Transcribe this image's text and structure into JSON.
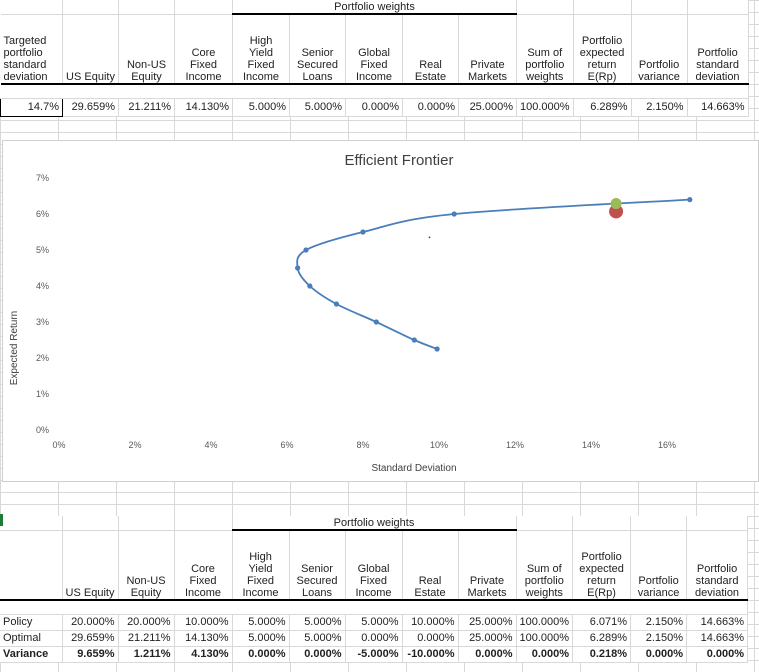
{
  "top_table": {
    "group_header": "Portfolio weights",
    "headers": [
      [
        "Targeted",
        "portfolio",
        "standard",
        "deviation"
      ],
      [
        "US Equity"
      ],
      [
        "Non-US",
        "Equity"
      ],
      [
        "Core",
        "Fixed",
        "Income"
      ],
      [
        "High",
        "Yield",
        "Fixed",
        "Income"
      ],
      [
        "Senior",
        "Secured",
        "Loans"
      ],
      [
        "Global",
        "Fixed",
        "Income"
      ],
      [
        "Real",
        "Estate"
      ],
      [
        "Private",
        "Markets"
      ],
      [
        "Sum of",
        "portfolio",
        "weights"
      ],
      [
        "Portfolio",
        "expected",
        "return",
        "E(Rp)"
      ],
      [
        "Portfolio",
        "variance"
      ],
      [
        "Portfolio",
        "standard",
        "deviation"
      ]
    ],
    "values": [
      "14.7%",
      "29.659%",
      "21.211%",
      "14.130%",
      "5.000%",
      "5.000%",
      "0.000%",
      "0.000%",
      "25.000%",
      "100.000%",
      "6.289%",
      "2.150%",
      "14.663%"
    ]
  },
  "chart_data": {
    "type": "scatter",
    "title": "Efficient Frontier",
    "xlabel": "Standard Deviation",
    "ylabel": "Expected Return",
    "xlim": [
      0,
      0.18
    ],
    "ylim": [
      0,
      0.07
    ],
    "xticks": [
      "0%",
      "2%",
      "4%",
      "6%",
      "8%",
      "10%",
      "12%",
      "14%",
      "16%"
    ],
    "yticks": [
      "0%",
      "1%",
      "2%",
      "3%",
      "4%",
      "5%",
      "6%",
      "7%"
    ],
    "series": [
      {
        "line": true,
        "color": "#4a7ebb",
        "points": [
          [
            0.0995,
            0.0225
          ],
          [
            0.0935,
            0.025
          ],
          [
            0.0835,
            0.03
          ],
          [
            0.073,
            0.035
          ],
          [
            0.066,
            0.04
          ],
          [
            0.0628,
            0.045
          ],
          [
            0.065,
            0.05
          ],
          [
            0.08,
            0.055
          ],
          [
            0.104,
            0.06
          ],
          [
            0.166,
            0.064
          ]
        ]
      },
      {
        "line": false,
        "color": "#c0504d",
        "points": [
          [
            0.1466,
            0.0607
          ]
        ]
      },
      {
        "line": false,
        "color": "#9bbb59",
        "points": [
          [
            0.1466,
            0.0629
          ]
        ]
      },
      {
        "line": false,
        "color": "#404040",
        "points": [
          [
            0.0975,
            0.0535
          ]
        ]
      }
    ],
    "grid": false,
    "legend": "none"
  },
  "bottom_table": {
    "group_header": "Portfolio weights",
    "headers": [
      [
        ""
      ],
      [
        "US Equity"
      ],
      [
        "Non-US",
        "Equity"
      ],
      [
        "Core",
        "Fixed",
        "Income"
      ],
      [
        "High",
        "Yield",
        "Fixed",
        "Income"
      ],
      [
        "Senior",
        "Secured",
        "Loans"
      ],
      [
        "Global",
        "Fixed",
        "Income"
      ],
      [
        "Real",
        "Estate"
      ],
      [
        "Private",
        "Markets"
      ],
      [
        "Sum of",
        "portfolio",
        "weights"
      ],
      [
        "Portfolio",
        "expected",
        "return",
        "E(Rp)"
      ],
      [
        "Portfolio",
        "variance"
      ],
      [
        "Portfolio",
        "standard",
        "deviation"
      ]
    ],
    "rows": [
      {
        "label": "Policy",
        "values": [
          "20.000%",
          "20.000%",
          "10.000%",
          "5.000%",
          "5.000%",
          "5.000%",
          "10.000%",
          "25.000%",
          "100.000%",
          "6.071%",
          "2.150%",
          "14.663%"
        ]
      },
      {
        "label": "Optimal",
        "values": [
          "29.659%",
          "21.211%",
          "14.130%",
          "5.000%",
          "5.000%",
          "0.000%",
          "0.000%",
          "25.000%",
          "100.000%",
          "6.289%",
          "2.150%",
          "14.663%"
        ]
      },
      {
        "label": "Variance",
        "values": [
          "9.659%",
          "1.211%",
          "4.130%",
          "0.000%",
          "0.000%",
          "-5.000%",
          "-10.000%",
          "0.000%",
          "0.000%",
          "0.218%",
          "0.000%",
          "0.000%"
        ]
      }
    ]
  }
}
